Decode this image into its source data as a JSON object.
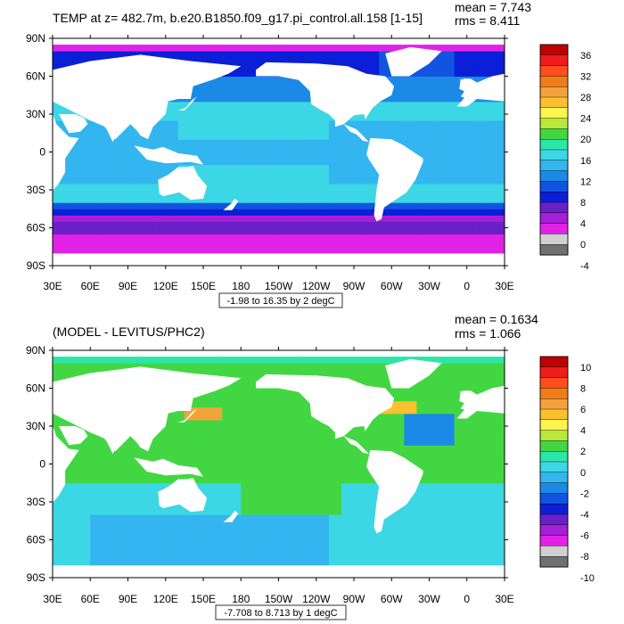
{
  "chart_data": [
    {
      "type": "heatmap",
      "title": "TEMP at z= 482.7m, b.e20.B1850.f09_g17.pi_control.all.158 [1-15]",
      "stats": [
        "mean = 7.743",
        "rms = 8.411"
      ],
      "contour_info": "-1.98 to 16.35 by 2 degC",
      "xlabel": "",
      "ylabel": "",
      "x_ticks": [
        "30E",
        "60E",
        "90E",
        "120E",
        "150E",
        "180",
        "150W",
        "120W",
        "90W",
        "60W",
        "30W",
        "0",
        "30E"
      ],
      "y_ticks": [
        "90N",
        "60N",
        "30N",
        "0",
        "30S",
        "60S",
        "90S"
      ],
      "xlim": [
        30,
        390
      ],
      "ylim": [
        -90,
        90
      ],
      "colorbar": {
        "labels": [
          "36",
          "32",
          "28",
          "24",
          "20",
          "16",
          "12",
          "8",
          "4",
          "0",
          "-4"
        ],
        "colors": [
          "#c00000",
          "#ee1c1c",
          "#ff4d1e",
          "#f07c18",
          "#f4a23a",
          "#fbc02d",
          "#fff44f",
          "#b8e83a",
          "#42d742",
          "#2be6a8",
          "#3cd7e4",
          "#33b5f0",
          "#1a8ae6",
          "#1054e0",
          "#0b1ed8",
          "#6a1fc7",
          "#a41fd6",
          "#e122e6",
          "#d0d0d0",
          "#707070"
        ]
      },
      "grid": false
    },
    {
      "type": "heatmap",
      "title": "(MODEL - LEVITUS/PHC2)",
      "stats": [
        "mean = 0.1634",
        "rms = 1.066"
      ],
      "contour_info": "-7.708 to 8.713 by 1 degC",
      "xlabel": "",
      "ylabel": "",
      "x_ticks": [
        "30E",
        "60E",
        "90E",
        "120E",
        "150E",
        "180",
        "150W",
        "120W",
        "90W",
        "60W",
        "30W",
        "0",
        "30E"
      ],
      "y_ticks": [
        "90N",
        "60N",
        "30N",
        "0",
        "30S",
        "60S",
        "90S"
      ],
      "xlim": [
        30,
        390
      ],
      "ylim": [
        -90,
        90
      ],
      "colorbar": {
        "labels": [
          "10",
          "8",
          "6",
          "4",
          "2",
          "0",
          "-2",
          "-4",
          "-6",
          "-8",
          "-10"
        ],
        "colors": [
          "#c00000",
          "#ee1c1c",
          "#ff4d1e",
          "#f07c18",
          "#f4a23a",
          "#fbc02d",
          "#fff44f",
          "#b8e83a",
          "#42d742",
          "#2be6a8",
          "#3cd7e4",
          "#33b5f0",
          "#1a8ae6",
          "#1054e0",
          "#0b1ed8",
          "#6a1fc7",
          "#a41fd6",
          "#e122e6",
          "#d0d0d0",
          "#707070"
        ]
      },
      "grid": false
    }
  ]
}
